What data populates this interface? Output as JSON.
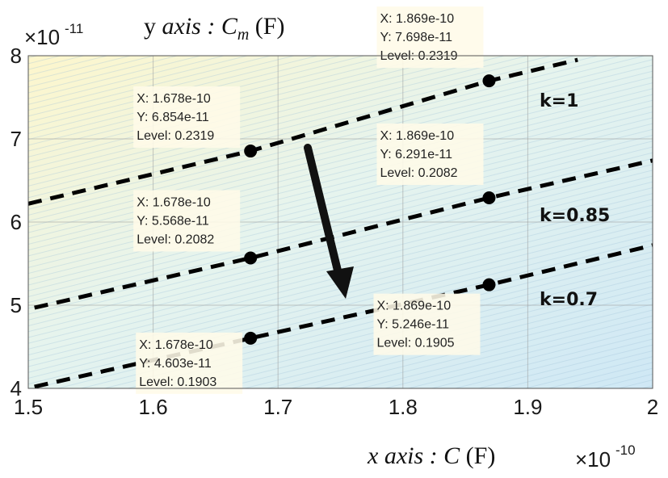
{
  "chart_data": {
    "type": "line",
    "xlabel": "x axis : C (F)",
    "ylabel": "y axis : C_m (F)",
    "x_multiplier": "×10^-10",
    "y_multiplier": "×10^-11",
    "xlim": [
      1.5,
      2.0
    ],
    "ylim": [
      4,
      8
    ],
    "x_ticks": [
      "1.5",
      "1.6",
      "1.7",
      "1.8",
      "1.9",
      "2"
    ],
    "y_ticks": [
      "4",
      "5",
      "6",
      "7",
      "8"
    ],
    "grid": true,
    "series": [
      {
        "name": "k=1",
        "x": [
          1.5,
          1.678,
          1.869,
          1.94
        ],
        "y": [
          6.22,
          6.854,
          7.698,
          7.95
        ]
      },
      {
        "name": "k=0.85",
        "x": [
          1.505,
          1.678,
          1.869,
          2.0
        ],
        "y": [
          4.97,
          5.568,
          6.291,
          6.74
        ]
      },
      {
        "name": "k=0.7",
        "x": [
          1.505,
          1.678,
          1.869,
          2.0
        ],
        "y": [
          4.02,
          4.603,
          5.246,
          5.72
        ]
      }
    ],
    "points": [
      {
        "x": 1.678e-10,
        "y": 6.854e-11,
        "x_text": "X: 1.678e-10",
        "y_text": "Y: 6.854e-11",
        "level_text": "Level: 0.2319"
      },
      {
        "x": 1.869e-10,
        "y": 7.698e-11,
        "x_text": "X: 1.869e-10",
        "y_text": "Y: 7.698e-11",
        "level_text": "Level: 0.2319"
      },
      {
        "x": 1.678e-10,
        "y": 5.568e-11,
        "x_text": "X: 1.678e-10",
        "y_text": "Y: 5.568e-11",
        "level_text": "Level: 0.2082"
      },
      {
        "x": 1.869e-10,
        "y": 6.291e-11,
        "x_text": "X: 1.869e-10",
        "y_text": "Y: 6.291e-11",
        "level_text": "Level: 0.2082"
      },
      {
        "x": 1.678e-10,
        "y": 4.603e-11,
        "x_text": "X: 1.678e-10",
        "y_text": "Y: 4.603e-11",
        "level_text": "Level: 0.1903"
      },
      {
        "x": 1.869e-10,
        "y": 5.246e-11,
        "x_text": "X: 1.869e-10",
        "y_text": "Y: 5.246e-11",
        "level_text": "Level: 0.1905"
      }
    ],
    "annotations": {
      "arrow": "downward arrow indicating decreasing k",
      "line_labels": [
        "k=1",
        "k=0.85",
        "k=0.7"
      ]
    },
    "colors": {
      "line": "#000000",
      "background_top_left": "#fdf6cc",
      "background_bottom_right": "#cfe8f5",
      "tooltip_bg": "#fffbe8"
    }
  }
}
